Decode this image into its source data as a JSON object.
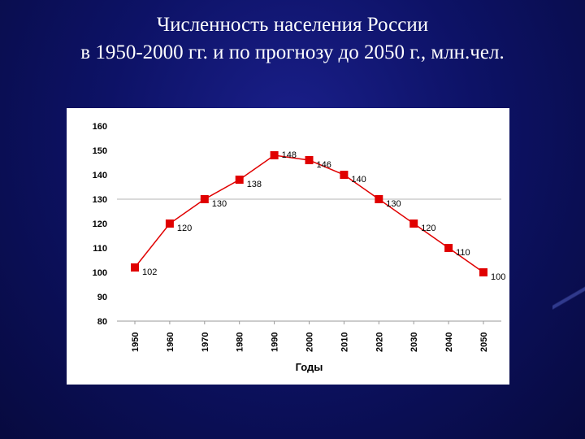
{
  "title": {
    "line1": "Численность населения России",
    "line2": "в 1950-2000 гг. и по прогнозу до 2050 г., млн.чел."
  },
  "colors": {
    "background": "#0d1266",
    "series": "#e00000",
    "title": "#ffffff"
  },
  "chart_data": {
    "type": "line",
    "x": [
      "1950",
      "1960",
      "1970",
      "1980",
      "1990",
      "2000",
      "2010",
      "2020",
      "2030",
      "2040",
      "2050"
    ],
    "series": [
      {
        "values": [
          102,
          120,
          130,
          138,
          148,
          146,
          140,
          130,
          120,
          110,
          100
        ]
      }
    ],
    "data_labels": [
      "102",
      "120",
      "130",
      "138",
      "148",
      "146",
      "140",
      "130",
      "120",
      "110",
      "100"
    ],
    "y_ticks": [
      80,
      90,
      100,
      110,
      120,
      130,
      140,
      150,
      160
    ],
    "ylim": [
      80,
      160
    ],
    "xlabel": "Годы",
    "ylabel": "",
    "grid": "horizontal line at 130 only",
    "legend": "none",
    "marker": "square"
  }
}
